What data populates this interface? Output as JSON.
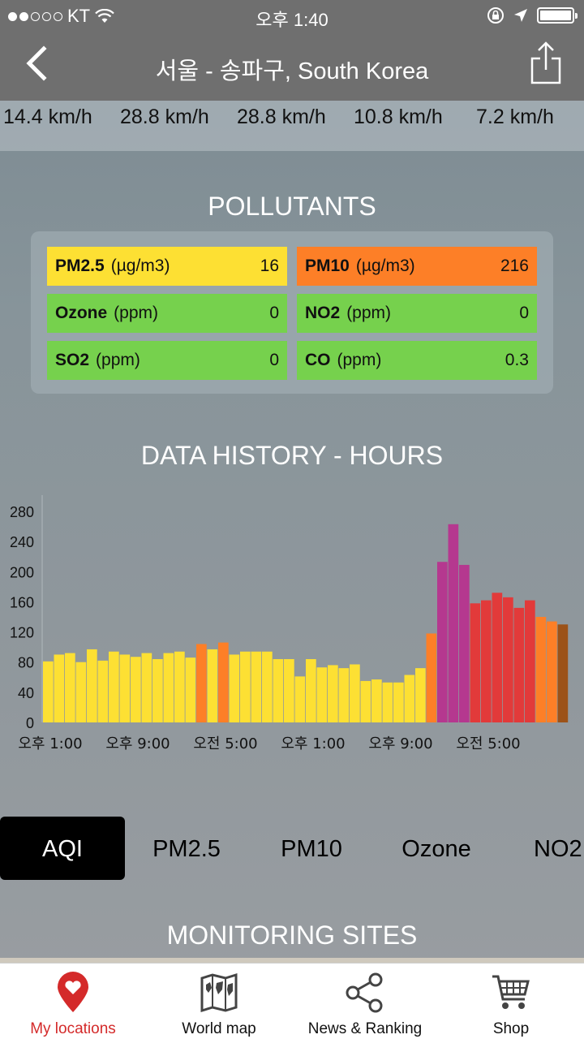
{
  "status_bar": {
    "carrier": "KT",
    "time": "오후 1:40"
  },
  "nav": {
    "title": "서울 - 송파구, South Korea"
  },
  "wind": [
    "14.4 km/h",
    "28.8 km/h",
    "28.8 km/h",
    "10.8 km/h",
    "7.2 km/h"
  ],
  "pollutants_title": "POLLUTANTS",
  "pollutants": [
    {
      "name": "PM2.5",
      "unit": "(µg/m3)",
      "value": "16",
      "color": "#fde033"
    },
    {
      "name": "PM10",
      "unit": "(µg/m3)",
      "value": "216",
      "color": "#fd7f27"
    },
    {
      "name": "Ozone",
      "unit": "(ppm)",
      "value": "0",
      "color": "#76d14d"
    },
    {
      "name": "NO2",
      "unit": "(ppm)",
      "value": "0",
      "color": "#76d14d"
    },
    {
      "name": "SO2",
      "unit": "(ppm)",
      "value": "0",
      "color": "#76d14d"
    },
    {
      "name": "CO",
      "unit": "(ppm)",
      "value": "0.3",
      "color": "#76d14d"
    }
  ],
  "history_title": "DATA HISTORY - HOURS",
  "chart_data": {
    "type": "bar",
    "title": "DATA HISTORY - HOURS",
    "ylim": [
      0,
      280
    ],
    "yticks": [
      0,
      40,
      80,
      120,
      160,
      200,
      240,
      280
    ],
    "xtick_labels": [
      "오후 1:00",
      "오후 9:00",
      "오전 5:00",
      "오후 1:00",
      "오후 9:00",
      "오전 5:00"
    ],
    "values": [
      81,
      90,
      92,
      80,
      97,
      82,
      94,
      90,
      87,
      92,
      84,
      92,
      94,
      86,
      104,
      97,
      106,
      90,
      94,
      94,
      94,
      84,
      84,
      61,
      84,
      73,
      76,
      72,
      77,
      55,
      57,
      53,
      53,
      63,
      72,
      118,
      213,
      263,
      209,
      158,
      162,
      172,
      166,
      152,
      162,
      140,
      134,
      130
    ],
    "colors": [
      "#fde033",
      "#fde033",
      "#fde033",
      "#fde033",
      "#fde033",
      "#fde033",
      "#fde033",
      "#fde033",
      "#fde033",
      "#fde033",
      "#fde033",
      "#fde033",
      "#fde033",
      "#fde033",
      "#fd7f27",
      "#fde033",
      "#fd7f27",
      "#fde033",
      "#fde033",
      "#fde033",
      "#fde033",
      "#fde033",
      "#fde033",
      "#fde033",
      "#fde033",
      "#fde033",
      "#fde033",
      "#fde033",
      "#fde033",
      "#fde033",
      "#fde033",
      "#fde033",
      "#fde033",
      "#fde033",
      "#fde033",
      "#fd7f27",
      "#b5388f",
      "#b5388f",
      "#b5388f",
      "#e23a3a",
      "#e23a3a",
      "#e23a3a",
      "#e23a3a",
      "#e23a3a",
      "#e23a3a",
      "#fd7f27",
      "#fd7f27",
      "#9c5218"
    ]
  },
  "tabs": [
    "AQI",
    "PM2.5",
    "PM10",
    "Ozone",
    "NO2"
  ],
  "monitoring_title": "MONITORING SITES",
  "tabbar": [
    {
      "label": "My locations",
      "icon": "pin-heart-icon"
    },
    {
      "label": "World map",
      "icon": "world-map-icon"
    },
    {
      "label": "News & Ranking",
      "icon": "share-nodes-icon"
    },
    {
      "label": "Shop",
      "icon": "cart-icon"
    }
  ],
  "colors": {
    "active_tab_bg": "#000000",
    "active_bottom_label": "#d42a2a"
  }
}
